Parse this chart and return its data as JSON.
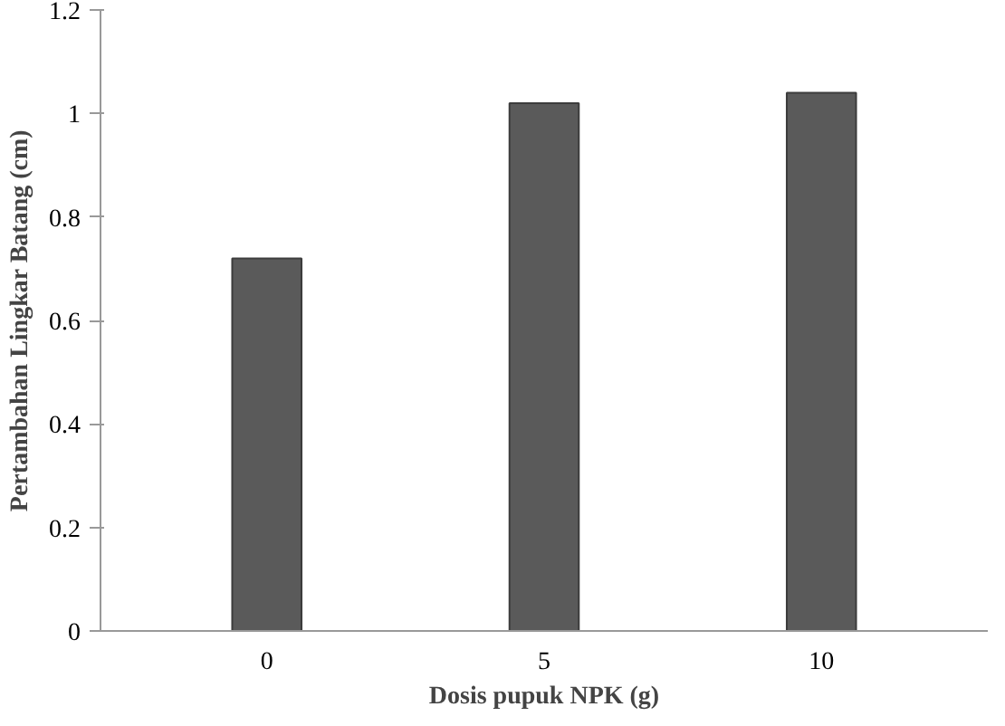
{
  "chart_data": {
    "type": "bar",
    "xlabel": "Dosis pupuk NPK (g)",
    "ylabel": "Pertambahan Lingkar Batang (cm)",
    "categories": [
      "0",
      "5",
      "10"
    ],
    "values": [
      0.72,
      1.02,
      1.04
    ],
    "color": "#5a5a5a",
    "ylim": [
      0,
      1.2
    ],
    "yticks": [
      0,
      0.2,
      0.4,
      0.6,
      0.8,
      1,
      1.2
    ],
    "grid": false
  }
}
